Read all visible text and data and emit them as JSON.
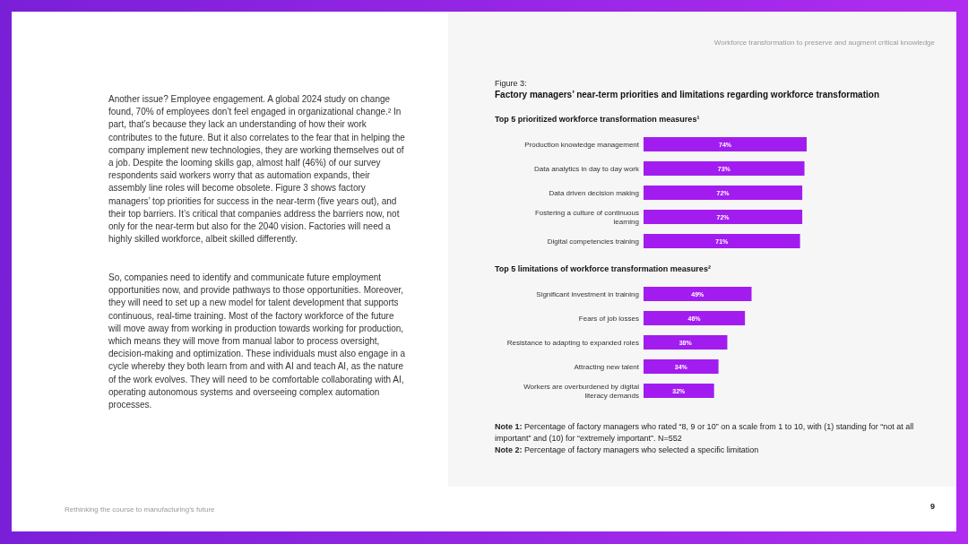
{
  "chart_data": [
    {
      "type": "bar",
      "orientation": "horizontal",
      "title": "Factory managers’ near-term priorities and limitations regarding workforce transformation",
      "subtitle": "Top 5 prioritized workforce transformation measures¹",
      "categories": [
        "Production knowledge management",
        "Data analytics in day to day work",
        "Data driven decision making",
        "Fostering a culture of continuous learning",
        "Digital competencies training"
      ],
      "values": [
        74,
        73,
        72,
        72,
        71
      ],
      "value_labels": [
        "74%",
        "73%",
        "72%",
        "72%",
        "71%"
      ],
      "color": "#a21cf0",
      "annotations": [
        "Workforce transformation to preserve and augment critical knowledge",
        "Figure 3:",
        "Another issue? Employee engagement. A global 2024 study on change found, 70% of employees don’t feel engaged in organizational change.² In part, that’s because they lack an understanding of how their work contributes to the future. But it also correlates to the fear that in helping the company implement new technologies, they are working themselves out of a job. Despite the looming skills gap, almost half (46%) of our survey respondents said workers worry that as automation expands, their assembly line roles will become obsolete. Figure 3 shows factory managers’ top priorities for success in the near-term (five years out), and their top barriers. It’s critical that companies address the barriers now, not only for the near-term but also for the 2040 vision. Factories will need a highly skilled workforce, albeit skilled differently.",
        "So, companies need to identify and communicate future employment opportunities now, and provide pathways to those opportunities. Moreover, they will need to set up a new model for talent development that supports continuous, real-time training. Most of the factory workforce of the future will move away from working in production towards working for production, which means they will move from manual labor to process oversight, decision-making and optimization. These individuals must also engage in a cycle whereby they both learn from and with AI and teach AI, as the nature of the work evolves. They will need to be comfortable collaborating with AI, operating autonomous systems and overseeing complex automation processes.",
        "Rethinking the course to manufacturing’s future",
        "9"
      ]
    },
    {
      "type": "bar",
      "orientation": "horizontal",
      "title": "Top 5 limitations of workforce transformation measures²",
      "categories": [
        "Significant investment in training",
        "Fears of job losses",
        "Resistance to adapting to expanded roles",
        "Attracting new talent",
        "Workers are overburdened by digital literacy demands"
      ],
      "values": [
        49,
        46,
        38,
        34,
        32
      ],
      "value_labels": [
        "49%",
        "46%",
        "38%",
        "34%",
        "32%"
      ],
      "color": "#a21cf0",
      "annotations": [
        "Note 1: Percentage of factory managers who rated “8, 9 or 10” on a scale from 1 to 10, with (1) standing for “not at all important” and (10) for “extremely important”. N=552",
        "Note 2: Percentage of factory managers who selected a specific limitation"
      ]
    }
  ]
}
